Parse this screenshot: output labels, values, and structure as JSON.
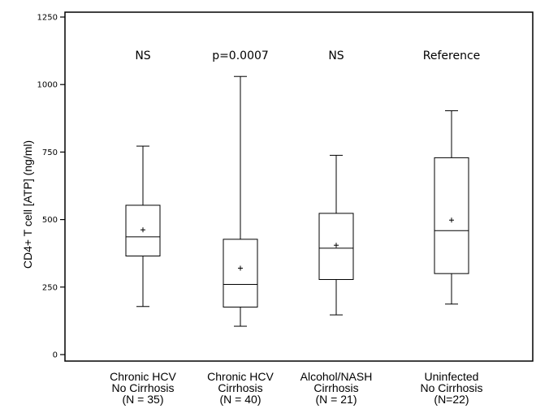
{
  "chart_data": {
    "type": "box",
    "xlabel": "",
    "ylabel": "CD4+ T cell [ATP] (ng/ml)",
    "ylim": [
      0,
      1250
    ],
    "yticks": [
      0,
      250,
      500,
      750,
      1000,
      1250
    ],
    "grid": false,
    "groups": [
      {
        "label_lines": [
          "Chronic HCV",
          "No Cirrhosis",
          "(N = 35)"
        ],
        "annotation": "NS",
        "min": 178,
        "q1": 365,
        "median": 436,
        "q3": 553,
        "max": 772,
        "mean": 462
      },
      {
        "label_lines": [
          "Chronic HCV",
          "Cirrhosis",
          "(N = 40)"
        ],
        "annotation": "p=0.0007",
        "min": 105,
        "q1": 176,
        "median": 260,
        "q3": 427,
        "max": 1030,
        "mean": 320
      },
      {
        "label_lines": [
          "Alcohol/NASH",
          "Cirrhosis",
          "(N = 21)"
        ],
        "annotation": "NS",
        "min": 147,
        "q1": 278,
        "median": 394,
        "q3": 523,
        "max": 738,
        "mean": 405
      },
      {
        "label_lines": [
          "Uninfected",
          "No Cirrhosis",
          "(N=22)"
        ],
        "annotation": "Reference",
        "min": 187,
        "q1": 300,
        "median": 459,
        "q3": 729,
        "max": 903,
        "mean": 498
      }
    ]
  }
}
